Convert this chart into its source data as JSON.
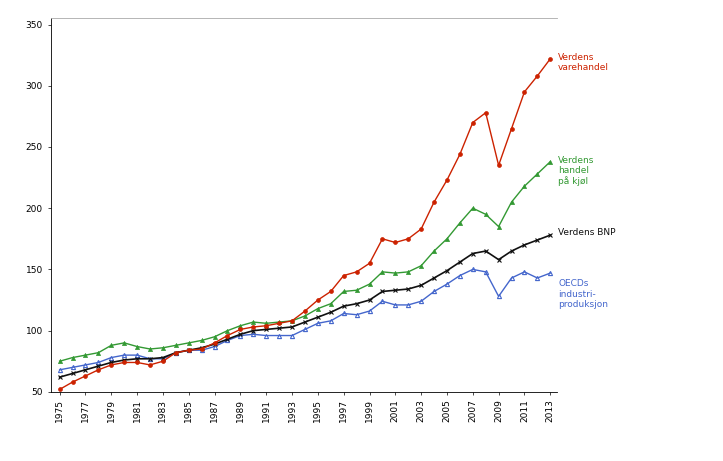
{
  "yticks": [
    50,
    100,
    150,
    200,
    250,
    300,
    350
  ],
  "xticks": [
    1975,
    1977,
    1979,
    1981,
    1983,
    1985,
    1987,
    1989,
    1991,
    1993,
    1995,
    1997,
    1999,
    2001,
    2003,
    2005,
    2007,
    2009,
    2011,
    2013
  ],
  "years": [
    1975,
    1976,
    1977,
    1978,
    1979,
    1980,
    1981,
    1982,
    1983,
    1984,
    1985,
    1986,
    1987,
    1988,
    1989,
    1990,
    1991,
    1992,
    1993,
    1994,
    1995,
    1996,
    1997,
    1998,
    1999,
    2000,
    2001,
    2002,
    2003,
    2004,
    2005,
    2006,
    2007,
    2008,
    2009,
    2010,
    2011,
    2012,
    2013
  ],
  "varehandel": [
    52,
    58,
    63,
    68,
    72,
    74,
    74,
    72,
    75,
    82,
    84,
    85,
    90,
    96,
    101,
    103,
    104,
    106,
    108,
    116,
    125,
    132,
    145,
    148,
    155,
    175,
    172,
    175,
    183,
    205,
    223,
    244,
    270,
    278,
    235,
    265,
    295,
    308,
    322
  ],
  "kjoelhandel": [
    75,
    78,
    80,
    82,
    88,
    90,
    87,
    85,
    86,
    88,
    90,
    92,
    95,
    100,
    104,
    107,
    106,
    107,
    108,
    112,
    118,
    122,
    132,
    133,
    138,
    148,
    147,
    148,
    153,
    165,
    175,
    188,
    200,
    195,
    185,
    205,
    218,
    228,
    238
  ],
  "bnp": [
    62,
    65,
    68,
    71,
    74,
    76,
    77,
    77,
    78,
    82,
    84,
    86,
    89,
    93,
    97,
    100,
    101,
    102,
    103,
    107,
    111,
    115,
    120,
    122,
    125,
    132,
    133,
    134,
    137,
    143,
    149,
    156,
    163,
    165,
    158,
    165,
    170,
    174,
    178
  ],
  "industriprod": [
    68,
    70,
    72,
    74,
    78,
    80,
    80,
    77,
    77,
    82,
    84,
    84,
    87,
    92,
    96,
    97,
    96,
    96,
    96,
    101,
    106,
    108,
    114,
    113,
    116,
    124,
    121,
    121,
    124,
    132,
    138,
    145,
    150,
    148,
    128,
    143,
    148,
    143,
    147
  ],
  "varehandel_color": "#cc2200",
  "kjoelhandel_color": "#339933",
  "bnp_color": "#111111",
  "industriprod_color": "#4466cc",
  "background_color": "#ffffff",
  "legend_varehandel": "Verdens\nvarehandel",
  "legend_kjoelhandel": "Verdens\nhandel\npå kjøl",
  "legend_bnp": "Verdens BNP",
  "legend_industriprod": "OECDs\nindustri-\nproduksjon",
  "ylim_min": 50,
  "ylim_max": 355,
  "xlim_min": 1974.3,
  "xlim_max": 2013.5
}
